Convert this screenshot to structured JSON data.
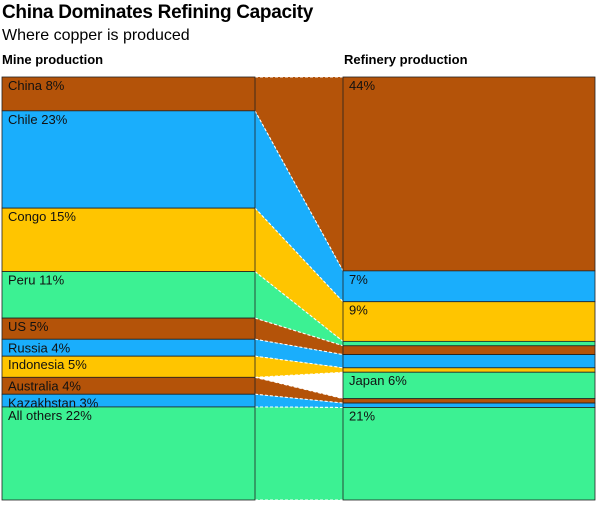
{
  "title": "China Dominates Refining Capacity",
  "subtitle": "Where copper is produced",
  "chart_data": {
    "type": "stacked-flow-bar",
    "unit": "%",
    "columns": [
      "Mine production",
      "Refinery production"
    ],
    "mine": [
      {
        "key": "china",
        "label": "China 8%",
        "value": 8,
        "color": "#b45309"
      },
      {
        "key": "chile",
        "label": "Chile 23%",
        "value": 23,
        "color": "#1aaefc"
      },
      {
        "key": "congo",
        "label": "Congo 15%",
        "value": 15,
        "color": "#ffc500"
      },
      {
        "key": "peru",
        "label": "Peru 11%",
        "value": 11,
        "color": "#3cf193"
      },
      {
        "key": "us",
        "label": "US 5%",
        "value": 5,
        "color": "#b45309"
      },
      {
        "key": "russia",
        "label": "Russia 4%",
        "value": 4,
        "color": "#1aaefc"
      },
      {
        "key": "indonesia",
        "label": "Indonesia 5%",
        "value": 5,
        "color": "#ffc500"
      },
      {
        "key": "australia",
        "label": "Australia 4%",
        "value": 4,
        "color": "#b45309"
      },
      {
        "key": "kazakhstan",
        "label": "Kazakhstan 3%",
        "value": 3,
        "color": "#1aaefc"
      },
      {
        "key": "others",
        "label": "All others 22%",
        "value": 22,
        "color": "#3cf193"
      }
    ],
    "refinery": [
      {
        "key": "china",
        "label": "44%",
        "value": 44,
        "color": "#b45309"
      },
      {
        "key": "chile",
        "label": "7%",
        "value": 7,
        "color": "#1aaefc"
      },
      {
        "key": "congo",
        "label": "9%",
        "value": 9,
        "color": "#ffc500"
      },
      {
        "key": "peru",
        "label": "",
        "value": 1,
        "color": "#3cf193"
      },
      {
        "key": "us",
        "label": "",
        "value": 2,
        "color": "#b45309"
      },
      {
        "key": "russia",
        "label": "",
        "value": 3,
        "color": "#1aaefc"
      },
      {
        "key": "indonesia",
        "label": "",
        "value": 1,
        "color": "#ffc500"
      },
      {
        "key": "japan",
        "label": "Japan 6%",
        "value": 6,
        "color": "#3cf193"
      },
      {
        "key": "australia",
        "label": "",
        "value": 1,
        "color": "#b45309"
      },
      {
        "key": "kazakhstan",
        "label": "",
        "value": 1,
        "color": "#1aaefc"
      },
      {
        "key": "others",
        "label": "21%",
        "value": 21,
        "color": "#3cf193"
      }
    ]
  }
}
